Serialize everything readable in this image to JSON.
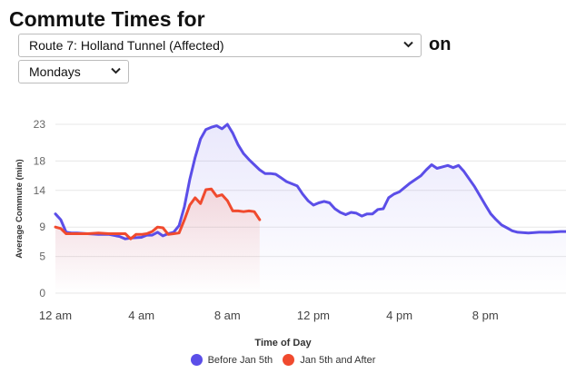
{
  "header": {
    "title": "Commute Times for",
    "on_label": "on"
  },
  "route_select": {
    "value": "Route 7: Holland Tunnel (Affected)",
    "icon": "chevron-down-icon"
  },
  "day_select": {
    "value": "Mondays",
    "icon": "chevron-down-icon"
  },
  "chart_data": {
    "type": "line",
    "xlabel": "Time of Day",
    "ylabel": "Average Commute (min)",
    "ylim": [
      0,
      23
    ],
    "yticks": [
      0,
      5,
      9,
      14,
      18,
      23
    ],
    "xlim": [
      0,
      23.75
    ],
    "xticks": [
      {
        "value": 0,
        "label": "12 am"
      },
      {
        "value": 4,
        "label": "4 am"
      },
      {
        "value": 8,
        "label": "8 am"
      },
      {
        "value": 12,
        "label": "12 pm"
      },
      {
        "value": 16,
        "label": "4 pm"
      },
      {
        "value": 20,
        "label": "8 pm"
      }
    ],
    "grid": "horizontal",
    "legend_position": "bottom",
    "series": [
      {
        "name": "Before Jan 5th",
        "color": "#5b4ee8",
        "points": [
          [
            0,
            10.8
          ],
          [
            0.25,
            10
          ],
          [
            0.5,
            8.3
          ],
          [
            0.75,
            8.2
          ],
          [
            1,
            8.2
          ],
          [
            1.5,
            8.1
          ],
          [
            2,
            8
          ],
          [
            2.5,
            8
          ],
          [
            3,
            7.7
          ],
          [
            3.25,
            7.4
          ],
          [
            3.5,
            7.5
          ],
          [
            4,
            7.6
          ],
          [
            4.25,
            7.9
          ],
          [
            4.5,
            7.9
          ],
          [
            4.75,
            8.3
          ],
          [
            5,
            7.8
          ],
          [
            5.25,
            8.1
          ],
          [
            5.5,
            8.3
          ],
          [
            5.75,
            9.2
          ],
          [
            6,
            11.8
          ],
          [
            6.25,
            15.5
          ],
          [
            6.5,
            18.5
          ],
          [
            6.75,
            21
          ],
          [
            7,
            22.3
          ],
          [
            7.25,
            22.6
          ],
          [
            7.5,
            22.8
          ],
          [
            7.75,
            22.4
          ],
          [
            8,
            23
          ],
          [
            8.25,
            21.8
          ],
          [
            8.5,
            20.2
          ],
          [
            8.75,
            19
          ],
          [
            9,
            18.2
          ],
          [
            9.25,
            17.5
          ],
          [
            9.5,
            16.8
          ],
          [
            9.75,
            16.3
          ],
          [
            10,
            16.3
          ],
          [
            10.25,
            16.2
          ],
          [
            10.5,
            15.7
          ],
          [
            10.75,
            15.2
          ],
          [
            11,
            14.9
          ],
          [
            11.25,
            14.6
          ],
          [
            11.5,
            13.5
          ],
          [
            11.75,
            12.6
          ],
          [
            12,
            12
          ],
          [
            12.25,
            12.3
          ],
          [
            12.5,
            12.5
          ],
          [
            12.75,
            12.3
          ],
          [
            13,
            11.5
          ],
          [
            13.25,
            11
          ],
          [
            13.5,
            10.7
          ],
          [
            13.75,
            11
          ],
          [
            14,
            10.9
          ],
          [
            14.25,
            10.5
          ],
          [
            14.5,
            10.8
          ],
          [
            14.75,
            10.8
          ],
          [
            15,
            11.4
          ],
          [
            15.25,
            11.5
          ],
          [
            15.5,
            13
          ],
          [
            15.75,
            13.5
          ],
          [
            16,
            13.8
          ],
          [
            16.5,
            15
          ],
          [
            17,
            16
          ],
          [
            17.25,
            16.8
          ],
          [
            17.5,
            17.5
          ],
          [
            17.75,
            17
          ],
          [
            18,
            17.2
          ],
          [
            18.25,
            17.4
          ],
          [
            18.5,
            17.1
          ],
          [
            18.75,
            17.4
          ],
          [
            19,
            16.6
          ],
          [
            19.5,
            14.5
          ],
          [
            20,
            12
          ],
          [
            20.25,
            10.8
          ],
          [
            20.5,
            10
          ],
          [
            20.75,
            9.3
          ],
          [
            21,
            8.9
          ],
          [
            21.25,
            8.5
          ],
          [
            21.5,
            8.3
          ],
          [
            22,
            8.2
          ],
          [
            22.5,
            8.3
          ],
          [
            23,
            8.3
          ],
          [
            23.5,
            8.4
          ],
          [
            23.75,
            8.4
          ]
        ]
      },
      {
        "name": "Jan 5th and After",
        "color": "#f04a2e",
        "points": [
          [
            0,
            9
          ],
          [
            0.25,
            8.8
          ],
          [
            0.5,
            8.1
          ],
          [
            1,
            8.1
          ],
          [
            1.5,
            8.1
          ],
          [
            2,
            8.2
          ],
          [
            2.5,
            8.1
          ],
          [
            3,
            8.1
          ],
          [
            3.25,
            8.1
          ],
          [
            3.5,
            7.4
          ],
          [
            3.75,
            8
          ],
          [
            4,
            8
          ],
          [
            4.25,
            8.1
          ],
          [
            4.5,
            8.4
          ],
          [
            4.75,
            9
          ],
          [
            5,
            8.9
          ],
          [
            5.25,
            8
          ],
          [
            5.5,
            8.1
          ],
          [
            5.75,
            8.2
          ],
          [
            6,
            10
          ],
          [
            6.25,
            12
          ],
          [
            6.5,
            13
          ],
          [
            6.75,
            12.2
          ],
          [
            7,
            14.1
          ],
          [
            7.25,
            14.2
          ],
          [
            7.5,
            13.2
          ],
          [
            7.75,
            13.4
          ],
          [
            8,
            12.6
          ],
          [
            8.25,
            11.2
          ],
          [
            8.5,
            11.2
          ],
          [
            8.75,
            11.1
          ],
          [
            9,
            11.2
          ],
          [
            9.25,
            11.1
          ],
          [
            9.5,
            10
          ]
        ]
      }
    ]
  }
}
